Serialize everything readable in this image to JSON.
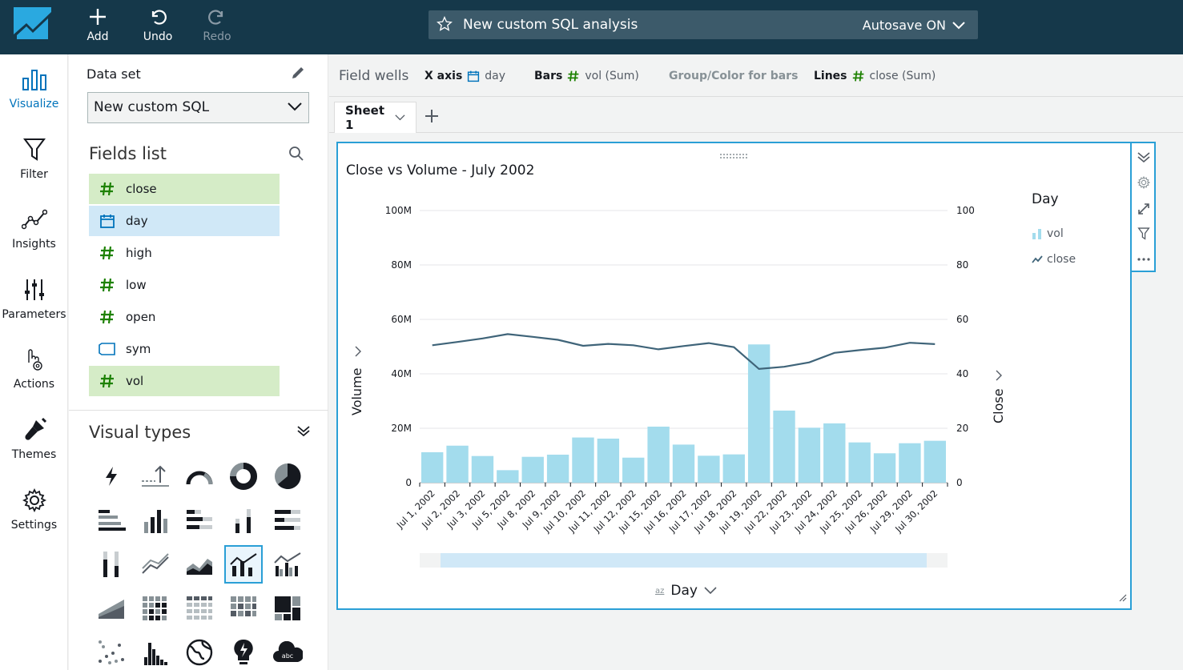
{
  "topbar": {
    "add_label": "Add",
    "undo_label": "Undo",
    "redo_label": "Redo",
    "analysis_title": "New custom SQL analysis",
    "autosave": "Autosave ON"
  },
  "nav": [
    {
      "label": "Visualize",
      "icon": "visualize-icon"
    },
    {
      "label": "Filter",
      "icon": "filter-icon"
    },
    {
      "label": "Insights",
      "icon": "insights-icon"
    },
    {
      "label": "Parameters",
      "icon": "parameters-icon"
    },
    {
      "label": "Actions",
      "icon": "actions-icon"
    },
    {
      "label": "Themes",
      "icon": "themes-icon"
    },
    {
      "label": "Settings",
      "icon": "settings-icon"
    }
  ],
  "dataset": {
    "label": "Data set",
    "value": "New custom SQL"
  },
  "fields_list": {
    "title": "Fields list",
    "fields": [
      {
        "name": "close",
        "kind": "measure",
        "selected": true
      },
      {
        "name": "day",
        "kind": "date",
        "selected": true
      },
      {
        "name": "high",
        "kind": "measure",
        "selected": false
      },
      {
        "name": "low",
        "kind": "measure",
        "selected": false
      },
      {
        "name": "open",
        "kind": "measure",
        "selected": false
      },
      {
        "name": "sym",
        "kind": "string",
        "selected": false
      },
      {
        "name": "vol",
        "kind": "measure",
        "selected": true
      }
    ]
  },
  "visual_types": {
    "title": "Visual types",
    "selected": "bar-and-line-combo"
  },
  "field_wells": {
    "label": "Field wells",
    "x_axis_label": "X axis",
    "x_axis_value": "day",
    "bars_label": "Bars",
    "bars_value": "vol (Sum)",
    "group_label": "Group/Color for bars",
    "lines_label": "Lines",
    "lines_value": "close (Sum)"
  },
  "sheet": {
    "tab": "Sheet 1"
  },
  "visual": {
    "title": "Close vs Volume - July 2002",
    "y_left_label": "Volume",
    "y_right_label": "Close",
    "x_label": "Day",
    "sort_icon_text": "az",
    "legend_title": "Day",
    "legend_vol": "vol",
    "legend_close": "close"
  },
  "colors": {
    "bar": "#a3dced",
    "line": "#3f6479",
    "accent": "#2a9fd6",
    "measure": "#1d8102",
    "dimension": "#0073bb"
  },
  "chart_data": {
    "type": "bar",
    "title": "Close vs Volume - July 2002",
    "xlabel": "Day",
    "ylabel": "Volume",
    "y2label": "Close",
    "categories": [
      "Jul 1, 2002",
      "Jul 2, 2002",
      "Jul 3, 2002",
      "Jul 5, 2002",
      "Jul 8, 2002",
      "Jul 9, 2002",
      "Jul 10, 2002",
      "Jul 11, 2002",
      "Jul 12, 2002",
      "Jul 15, 2002",
      "Jul 16, 2002",
      "Jul 17, 2002",
      "Jul 18, 2002",
      "Jul 19, 2002",
      "Jul 22, 2002",
      "Jul 23, 2002",
      "Jul 24, 2002",
      "Jul 25, 2002",
      "Jul 26, 2002",
      "Jul 29, 2002",
      "Jul 30, 2002"
    ],
    "series": [
      {
        "name": "vol",
        "type": "bar",
        "axis": "left",
        "values": [
          11200000,
          13600000,
          9800000,
          4600000,
          9500000,
          10300000,
          16600000,
          16200000,
          9200000,
          20600000,
          14000000,
          9900000,
          10400000,
          50800000,
          26500000,
          20200000,
          21800000,
          14800000,
          10800000,
          14500000,
          15400000
        ]
      },
      {
        "name": "close",
        "type": "line",
        "axis": "right",
        "values": [
          50.5,
          51.7,
          53.0,
          54.6,
          53.6,
          52.5,
          50.3,
          51.0,
          50.5,
          49.0,
          50.2,
          51.3,
          49.8,
          41.8,
          42.6,
          44.2,
          47.7,
          48.7,
          49.6,
          51.4,
          50.9
        ]
      }
    ],
    "ylim": [
      0,
      100000000
    ],
    "y2lim": [
      0,
      100
    ],
    "y_ticks": [
      "0",
      "20M",
      "40M",
      "60M",
      "80M",
      "100M"
    ],
    "y2_ticks": [
      "0",
      "20",
      "40",
      "60",
      "80",
      "100"
    ],
    "grid": true,
    "legend": "top-right"
  }
}
